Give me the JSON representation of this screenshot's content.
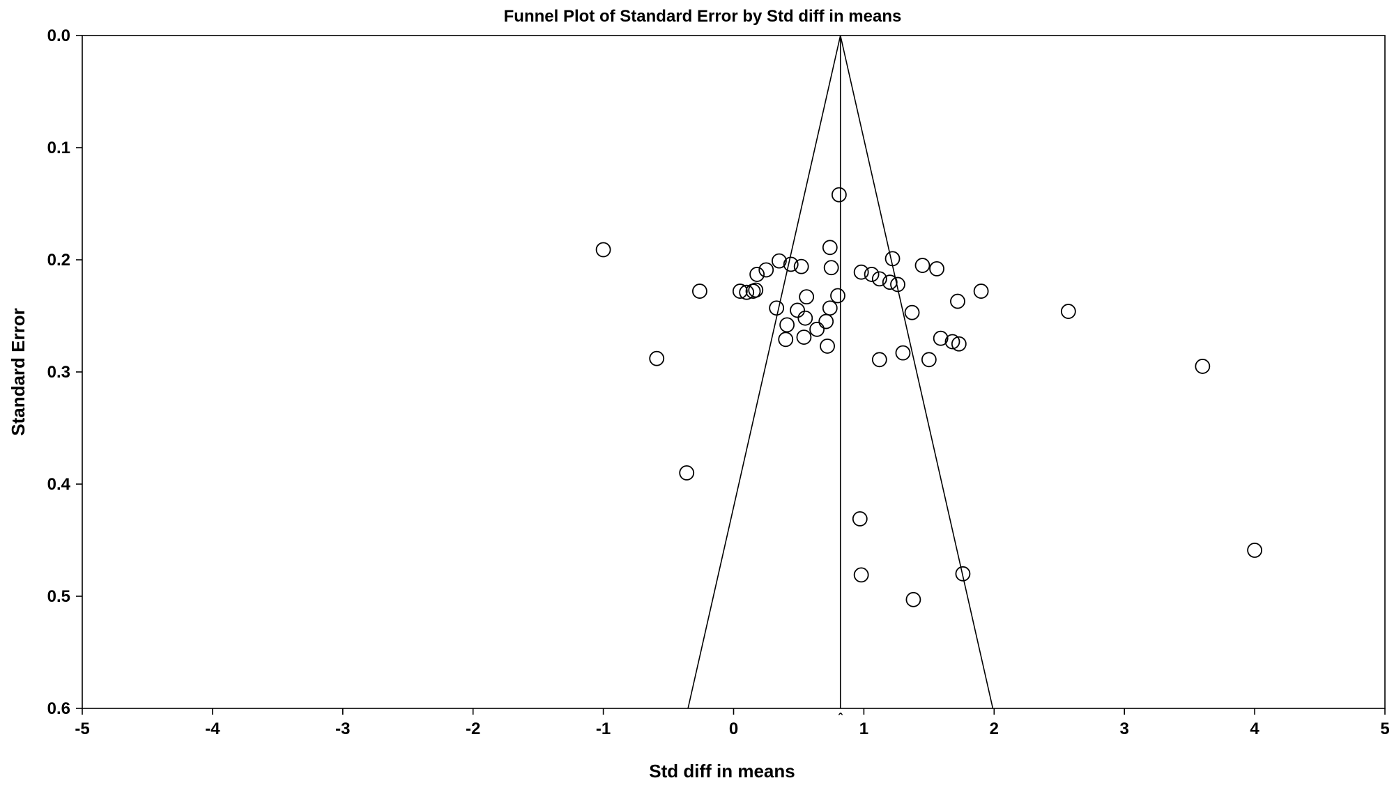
{
  "chart_data": {
    "type": "scatter",
    "title": "Funnel Plot of Standard Error by Std diff in means",
    "xlabel": "Std diff in means",
    "ylabel": "Standard Error",
    "xlim": [
      -5,
      5
    ],
    "ylim": [
      0.0,
      0.6
    ],
    "y_inverted": true,
    "grid": false,
    "legend": "none",
    "x_ticks": [
      "-5",
      "-4",
      "-3",
      "-2",
      "-1",
      "0",
      "1",
      "2",
      "3",
      "4",
      "5"
    ],
    "y_ticks": [
      "0.0",
      "0.1",
      "0.2",
      "0.3",
      "0.4",
      "0.5",
      "0.6"
    ],
    "x_tick_values": [
      -5,
      -4,
      -3,
      -2,
      -1,
      0,
      1,
      2,
      3,
      4,
      5
    ],
    "y_tick_values": [
      0.0,
      0.1,
      0.2,
      0.3,
      0.4,
      0.5,
      0.6
    ],
    "pooled_estimate": 0.82,
    "pooled_marker": "ˆ",
    "funnel_bottom_se": 0.6,
    "funnel_bottom_left": -0.35,
    "funnel_bottom_right": 1.99,
    "marker": "open-circle",
    "points": [
      {
        "x": 0.81,
        "y": 0.142
      },
      {
        "x": -1.0,
        "y": 0.191
      },
      {
        "x": 0.74,
        "y": 0.189
      },
      {
        "x": 1.22,
        "y": 0.199
      },
      {
        "x": 0.35,
        "y": 0.201
      },
      {
        "x": 0.44,
        "y": 0.204
      },
      {
        "x": 0.52,
        "y": 0.206
      },
      {
        "x": 0.75,
        "y": 0.207
      },
      {
        "x": 1.45,
        "y": 0.205
      },
      {
        "x": 1.56,
        "y": 0.208
      },
      {
        "x": 0.25,
        "y": 0.209
      },
      {
        "x": 0.18,
        "y": 0.213
      },
      {
        "x": 0.98,
        "y": 0.211
      },
      {
        "x": 1.06,
        "y": 0.213
      },
      {
        "x": 1.12,
        "y": 0.217
      },
      {
        "x": 1.2,
        "y": 0.22
      },
      {
        "x": 1.26,
        "y": 0.222
      },
      {
        "x": -0.26,
        "y": 0.228
      },
      {
        "x": 0.05,
        "y": 0.228
      },
      {
        "x": 0.1,
        "y": 0.229
      },
      {
        "x": 0.15,
        "y": 0.228
      },
      {
        "x": 0.17,
        "y": 0.227
      },
      {
        "x": 1.9,
        "y": 0.228
      },
      {
        "x": 0.8,
        "y": 0.232
      },
      {
        "x": 0.56,
        "y": 0.233
      },
      {
        "x": 1.72,
        "y": 0.237
      },
      {
        "x": 0.33,
        "y": 0.243
      },
      {
        "x": 0.74,
        "y": 0.243
      },
      {
        "x": 0.49,
        "y": 0.245
      },
      {
        "x": 1.37,
        "y": 0.247
      },
      {
        "x": 2.57,
        "y": 0.246
      },
      {
        "x": 0.55,
        "y": 0.252
      },
      {
        "x": 0.71,
        "y": 0.255
      },
      {
        "x": 0.41,
        "y": 0.258
      },
      {
        "x": 0.64,
        "y": 0.262
      },
      {
        "x": 0.54,
        "y": 0.269
      },
      {
        "x": 1.59,
        "y": 0.27
      },
      {
        "x": 0.4,
        "y": 0.271
      },
      {
        "x": 1.68,
        "y": 0.273
      },
      {
        "x": 1.73,
        "y": 0.275
      },
      {
        "x": 0.72,
        "y": 0.277
      },
      {
        "x": 1.3,
        "y": 0.283
      },
      {
        "x": -0.59,
        "y": 0.288
      },
      {
        "x": 1.12,
        "y": 0.289
      },
      {
        "x": 1.5,
        "y": 0.289
      },
      {
        "x": 3.6,
        "y": 0.295
      },
      {
        "x": -0.36,
        "y": 0.39
      },
      {
        "x": 0.97,
        "y": 0.431
      },
      {
        "x": 4.0,
        "y": 0.459
      },
      {
        "x": 1.76,
        "y": 0.48
      },
      {
        "x": 0.98,
        "y": 0.481
      },
      {
        "x": 1.38,
        "y": 0.503
      }
    ]
  }
}
